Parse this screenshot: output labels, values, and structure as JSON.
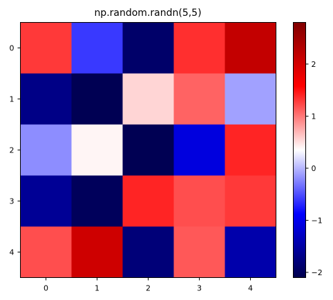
{
  "chart_data": {
    "type": "heatmap",
    "title": "np.random.randn(5,5)",
    "xlabel": "",
    "ylabel": "",
    "x_ticks": [
      "0",
      "1",
      "2",
      "3",
      "4"
    ],
    "y_ticks": [
      "0",
      "1",
      "2",
      "3",
      "4"
    ],
    "values": [
      [
        1.3,
        -0.6,
        -1.9,
        1.35,
        2.15
      ],
      [
        -1.7,
        -2.05,
        0.55,
        1.1,
        -0.1
      ],
      [
        -0.2,
        0.4,
        -2.05,
        -1.1,
        1.4
      ],
      [
        -1.6,
        -2.0,
        1.4,
        1.2,
        1.3
      ],
      [
        1.2,
        2.05,
        -1.8,
        1.15,
        -1.45
      ]
    ],
    "colormap": "seismic",
    "colors": [
      "#00004c",
      "#0000ff",
      "#ffffff",
      "#ff0000",
      "#800000"
    ],
    "vmin": -2.1,
    "vmax": 2.8,
    "colorbar_ticks": [
      "-2",
      "-1",
      "0",
      "1",
      "2"
    ],
    "colorbar_tick_values": [
      -2,
      -1,
      0,
      1,
      2
    ]
  }
}
